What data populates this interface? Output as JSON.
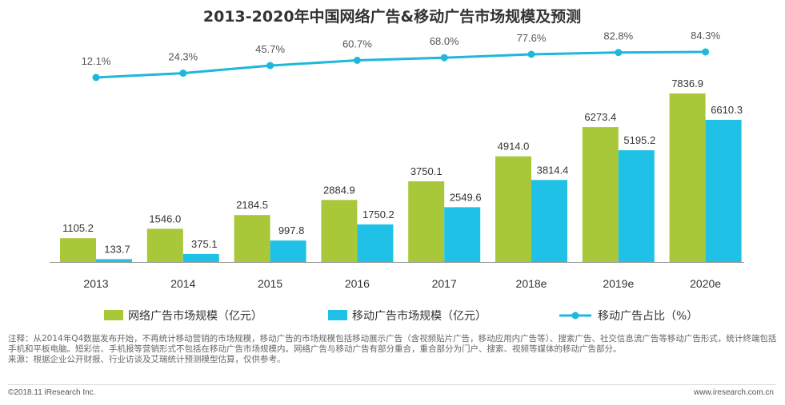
{
  "chart_data": {
    "type": "bar",
    "title": "2013-2020年中国网络广告&移动广告市场规模及预测",
    "categories": [
      "2013",
      "2014",
      "2015",
      "2016",
      "2017",
      "2018e",
      "2019e",
      "2020e"
    ],
    "series": [
      {
        "name": "网络广告市场规模（亿元）",
        "type": "bar",
        "color": "#a8c83a",
        "values": [
          1105.2,
          1546.0,
          2184.5,
          2884.9,
          3750.1,
          4914.0,
          6273.4,
          7836.9
        ],
        "labels": [
          "1105.2",
          "1546.0",
          "2184.5",
          "2884.9",
          "3750.1",
          "4914.0",
          "6273.4",
          "7836.9"
        ]
      },
      {
        "name": "移动广告市场规模（亿元）",
        "type": "bar",
        "color": "#1fc2e6",
        "values": [
          133.7,
          375.1,
          997.8,
          1750.2,
          2549.6,
          3814.4,
          5195.2,
          6610.3
        ],
        "labels": [
          "133.7",
          "375.1",
          "997.8",
          "1750.2",
          "2549.6",
          "3814.4",
          "5195.2",
          "6610.3"
        ]
      },
      {
        "name": "移动广告占比（%）",
        "type": "line",
        "color": "#1fb7da",
        "values": [
          12.1,
          24.3,
          45.7,
          60.7,
          68.0,
          77.6,
          82.8,
          84.3
        ],
        "labels": [
          "12.1%",
          "24.3%",
          "45.7%",
          "60.7%",
          "68.0%",
          "77.6%",
          "82.8%",
          "84.3%"
        ]
      }
    ],
    "legend_position": "bottom",
    "grid": false
  },
  "notes": {
    "line1": "注释：从2014年Q4数据发布开始，不再统计移动营销的市场规模，移动广告的市场规模包括移动展示广告（含视频贴片广告，移动应用内广告等）、搜索广告、社交信息流广告等移动广告形式，统计终端包括手机和平板电脑。短彩信、手机报等营销形式不包括在移动广告市场规模内。网络广告与移动广告有部分重合，重合部分为门户、搜索、视频等媒体的移动广告部分。",
    "line2": "来源：根据企业公开财报、行业访谈及艾瑞统计预测模型估算，仅供参考。"
  },
  "footer": {
    "copyright": "©2018.11 iResearch Inc.",
    "website": "www.iresearch.com.cn"
  }
}
